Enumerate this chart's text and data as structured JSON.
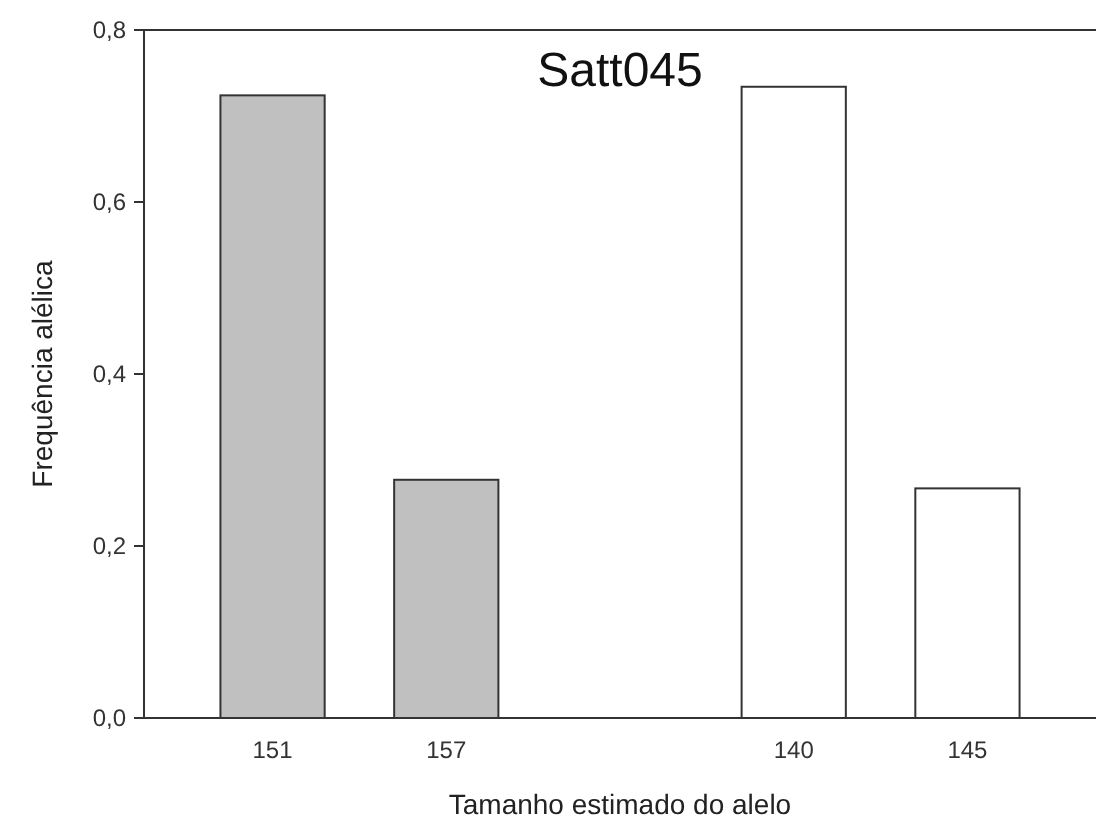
{
  "chart_data": {
    "type": "bar",
    "title": "Satt045",
    "xlabel": "Tamanho estimado do alelo",
    "ylabel": "Frequência alélica",
    "categories": [
      "151",
      "157",
      null,
      "140",
      "145"
    ],
    "values": [
      0.724,
      0.277,
      null,
      0.734,
      0.267
    ],
    "colors": [
      "#c0c0c0",
      "#c0c0c0",
      null,
      "#ffffff",
      "#ffffff"
    ],
    "ylim": [
      0,
      0.8
    ],
    "yticks": [
      {
        "value": 0,
        "label": "0,0"
      },
      {
        "value": 0.2,
        "label": "0,2"
      },
      {
        "value": 0.4,
        "label": "0,4"
      },
      {
        "value": 0.6,
        "label": "0,6"
      },
      {
        "value": 0.8,
        "label": "0,8"
      }
    ],
    "grid": false
  }
}
